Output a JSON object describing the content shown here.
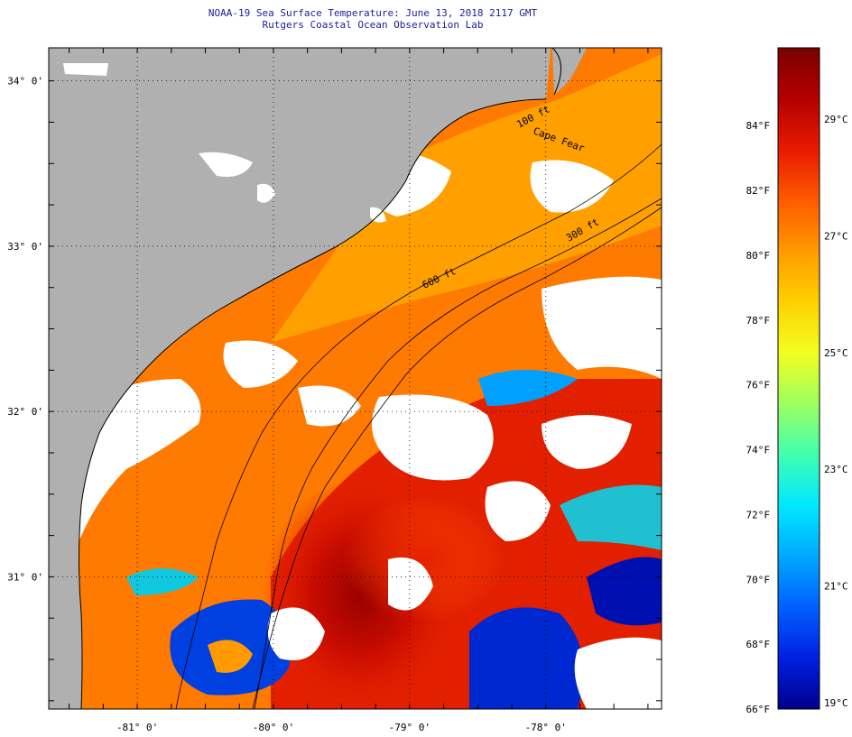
{
  "header": {
    "title": "NOAA-19 Sea Surface Temperature:  June 13, 2018 2117 GMT",
    "subtitle": "Rutgers Coastal Ocean Observation Lab"
  },
  "map": {
    "lat_labels": [
      "34° 0'",
      "33° 0'",
      "32° 0'",
      "31° 0'"
    ],
    "lat_values": [
      34,
      33,
      32,
      31
    ],
    "lon_labels": [
      "-81° 0'",
      "-80° 0'",
      "-79° 0'",
      "-78° 0'"
    ],
    "lon_values": [
      -81,
      -80,
      -79,
      -78
    ],
    "lon_range": [
      -81.65,
      -77.15
    ],
    "lat_range": [
      30.2,
      34.2
    ],
    "isobath_labels": [
      "100 ft",
      "300 ft",
      "600 ft"
    ],
    "place_label": "Cape Fear",
    "colors": {
      "land": "#b0b0b0",
      "cloud": "#ffffff",
      "coastline": "#000000",
      "grid": "#000000"
    }
  },
  "colorbar": {
    "unit_f": "°F",
    "unit_c": "°C",
    "f_labels": [
      "84°F",
      "82°F",
      "80°F",
      "78°F",
      "76°F",
      "74°F",
      "72°F",
      "70°F",
      "68°F",
      "66°F"
    ],
    "f_values": [
      84,
      82,
      80,
      78,
      76,
      74,
      72,
      70,
      68,
      66
    ],
    "c_labels": [
      "29°C",
      "27°C",
      "25°C",
      "23°C",
      "21°C",
      "19°C"
    ],
    "c_values": [
      29,
      27,
      25,
      23,
      21,
      19
    ],
    "f_range": [
      66,
      86.4
    ],
    "gradient": [
      "#7a0000",
      "#b40000",
      "#e81a00",
      "#ff5a00",
      "#ff9a00",
      "#ffd000",
      "#f2ff20",
      "#9cff60",
      "#40ffb0",
      "#00e8ff",
      "#00a8ff",
      "#0060ff",
      "#0020e0",
      "#00008a"
    ]
  }
}
